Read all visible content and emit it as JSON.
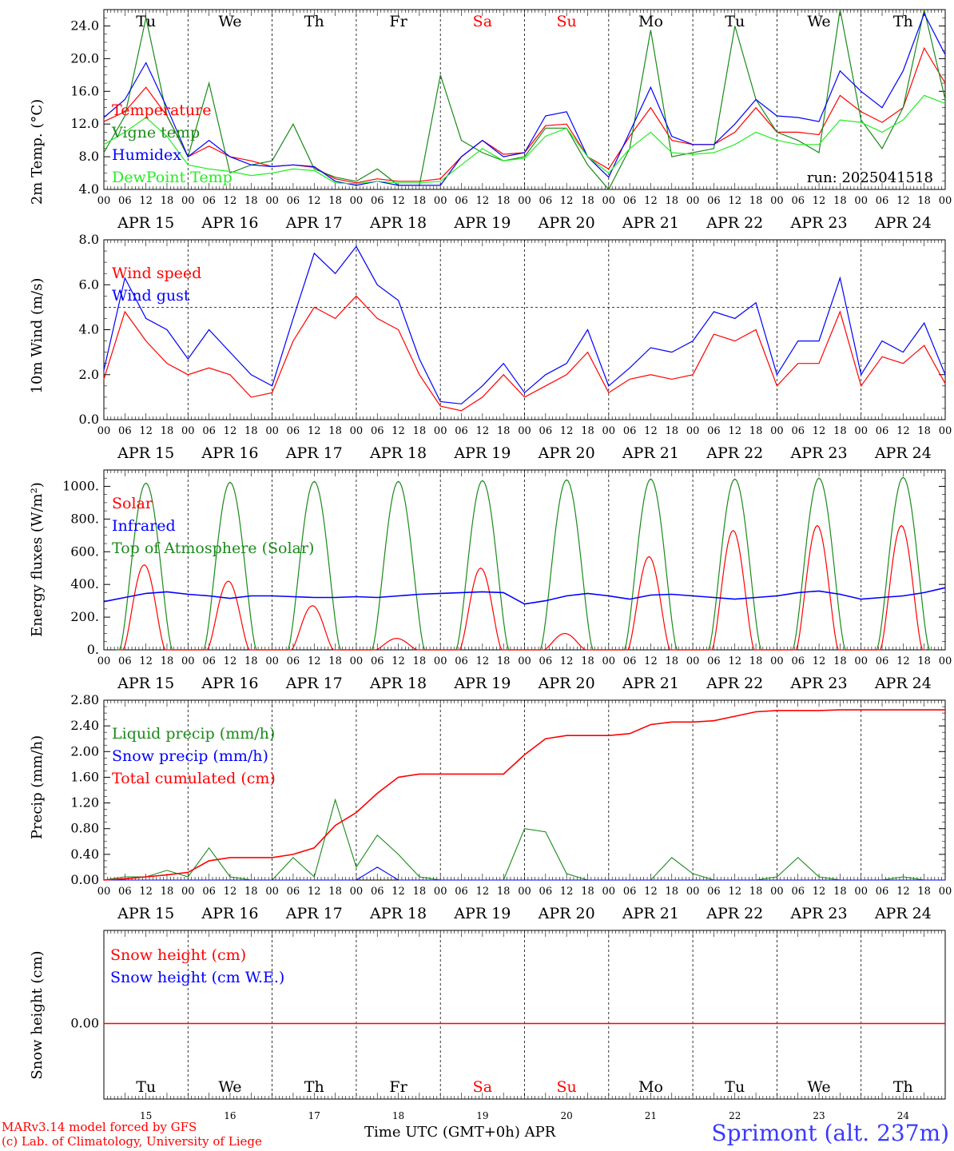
{
  "chart_data": [
    {
      "type": "line",
      "ylabel": "2m Temp. (°C)",
      "ylim": [
        4,
        26
      ],
      "yticks": [
        "4.0",
        "8.0",
        "12.0",
        "16.0",
        "20.0",
        "24.0"
      ],
      "ytick_values": [
        4,
        8,
        12,
        16,
        20,
        24
      ],
      "annotation": "run: 2025041518",
      "x_hours": [
        0,
        6,
        12,
        18,
        24,
        30,
        36,
        42,
        48,
        54,
        60,
        66,
        72,
        78,
        84,
        90,
        96,
        102,
        108,
        114,
        120,
        126,
        132,
        138,
        144,
        150,
        156,
        162,
        168,
        174,
        180,
        186,
        192,
        198,
        204,
        210,
        216,
        222,
        228,
        234,
        240
      ],
      "series": [
        {
          "name": "Temperature",
          "color": "#ff0000",
          "values": [
            12.3,
            13.5,
            16.5,
            13,
            8,
            9.3,
            8,
            7.5,
            6.8,
            7,
            6.7,
            5.3,
            4.8,
            5.3,
            5,
            5,
            5.3,
            8,
            10,
            8.3,
            8.5,
            11.8,
            12,
            8,
            6.5,
            10.5,
            14,
            10,
            9.5,
            9.5,
            11,
            14,
            11,
            11,
            10.7,
            15.5,
            13.5,
            12.2,
            14,
            21.3,
            17
          ]
        },
        {
          "name": "Vigne temp",
          "color": "#1a8a1a",
          "values": [
            8.5,
            13,
            25,
            13,
            8,
            17,
            6,
            7,
            7.5,
            12,
            6.5,
            5.5,
            5,
            6.5,
            4.5,
            4.5,
            18,
            10,
            8.5,
            7.5,
            8,
            11.5,
            11.5,
            7,
            4,
            9,
            23.5,
            8,
            8.5,
            9,
            24,
            15,
            11,
            10,
            8.5,
            26,
            12.5,
            9,
            14,
            26,
            15
          ]
        },
        {
          "name": "Humidex",
          "color": "#0000ff",
          "values": [
            12.8,
            15,
            19.5,
            14,
            8,
            10,
            8,
            7,
            6.8,
            7,
            6.8,
            5,
            4.5,
            5,
            4.5,
            4.5,
            4.5,
            8,
            10,
            8,
            8.5,
            13,
            13.5,
            8,
            5.5,
            11,
            16.5,
            10.5,
            9.5,
            9.5,
            12,
            15,
            13,
            12.8,
            12.3,
            18.5,
            16,
            14,
            18.5,
            25.5,
            20.5
          ]
        },
        {
          "name": "DewPoint Temp",
          "color": "#22ee22",
          "values": [
            9.5,
            11,
            12.8,
            10.5,
            7,
            6.5,
            6.2,
            5.7,
            6,
            6.5,
            6.3,
            4.8,
            4.7,
            5,
            4.8,
            4.8,
            5,
            7,
            9,
            7.5,
            7.8,
            10.5,
            11.5,
            8,
            6,
            9,
            11,
            8.5,
            8.3,
            8.5,
            9.5,
            11,
            10,
            9.5,
            9.5,
            12.5,
            12.2,
            11,
            12.5,
            15.5,
            14.5
          ]
        }
      ]
    },
    {
      "type": "line",
      "ylabel": "10m Wind (m/s)",
      "ylim": [
        0,
        8
      ],
      "yticks": [
        "0.0",
        "2.0",
        "4.0",
        "6.0",
        "8.0"
      ],
      "ytick_values": [
        0,
        2,
        4,
        6,
        8
      ],
      "reference_line": 5,
      "x_hours": [
        0,
        6,
        12,
        18,
        24,
        30,
        36,
        42,
        48,
        54,
        60,
        66,
        72,
        78,
        84,
        90,
        96,
        102,
        108,
        114,
        120,
        126,
        132,
        138,
        144,
        150,
        156,
        162,
        168,
        174,
        180,
        186,
        192,
        198,
        204,
        210,
        216,
        222,
        228,
        234,
        240
      ],
      "series": [
        {
          "name": "Wind speed",
          "color": "#ff0000",
          "values": [
            1.8,
            4.8,
            3.5,
            2.5,
            2,
            2.3,
            2,
            1,
            1.2,
            3.5,
            5,
            4.5,
            5.5,
            4.5,
            4,
            2,
            0.6,
            0.4,
            1,
            2,
            1,
            1.5,
            2,
            3,
            1.2,
            1.8,
            2,
            1.8,
            2,
            3.8,
            3.5,
            4,
            1.5,
            2.5,
            2.5,
            4.8,
            1.5,
            2.8,
            2.5,
            3.3,
            1.6
          ]
        },
        {
          "name": "Wind gust",
          "color": "#0000ff",
          "values": [
            2.2,
            6.3,
            4.5,
            4,
            2.7,
            4,
            3,
            2,
            1.5,
            4.5,
            7.4,
            6.5,
            7.7,
            6,
            5.3,
            2.7,
            0.8,
            0.7,
            1.5,
            2.5,
            1.2,
            2,
            2.5,
            4,
            1.5,
            2.3,
            3.2,
            3,
            3.5,
            4.8,
            4.5,
            5.2,
            2,
            3.5,
            3.5,
            6.3,
            2,
            3.5,
            3,
            4.3,
            2
          ]
        }
      ]
    },
    {
      "type": "line",
      "ylabel": "Energy fluxes (W/m²)",
      "ylim": [
        0,
        1100
      ],
      "yticks": [
        "0.",
        "200.",
        "400.",
        "600.",
        "800.",
        "1000."
      ],
      "ytick_values": [
        0,
        200,
        400,
        600,
        800,
        1000
      ],
      "toa_peaks": [
        1020,
        1025,
        1030,
        1030,
        1035,
        1040,
        1045,
        1045,
        1050,
        1055
      ],
      "solar_peaks": [
        520,
        420,
        270,
        70,
        500,
        100,
        570,
        730,
        760,
        760
      ],
      "infrared_values": [
        295,
        320,
        345,
        355,
        340,
        330,
        315,
        330,
        330,
        325,
        320,
        320,
        325,
        320,
        330,
        340,
        345,
        350,
        355,
        350,
        280,
        300,
        330,
        345,
        330,
        310,
        335,
        340,
        330,
        320,
        310,
        320,
        330,
        350,
        360,
        340,
        310,
        320,
        330,
        350,
        380
      ],
      "series": [
        {
          "name": "Solar",
          "color": "#ff0000"
        },
        {
          "name": "Infrared",
          "color": "#0000ff"
        },
        {
          "name": "Top of Atmosphere (Solar)",
          "color": "#1a8a1a"
        }
      ]
    },
    {
      "type": "line",
      "ylabel": "Precip (mm/h)",
      "ylim": [
        0,
        2.8
      ],
      "yticks": [
        "0.00",
        "0.40",
        "0.80",
        "1.20",
        "1.60",
        "2.00",
        "2.40",
        "2.80"
      ],
      "ytick_values": [
        0,
        0.4,
        0.8,
        1.2,
        1.6,
        2.0,
        2.4,
        2.8
      ],
      "x_hours": [
        0,
        6,
        12,
        18,
        24,
        30,
        36,
        42,
        48,
        54,
        60,
        66,
        72,
        78,
        84,
        90,
        96,
        102,
        108,
        114,
        120,
        126,
        132,
        138,
        144,
        150,
        156,
        162,
        168,
        174,
        180,
        186,
        192,
        198,
        204,
        210,
        216,
        222,
        228,
        234,
        240
      ],
      "series": [
        {
          "name": "Liquid precip (mm/h)",
          "color": "#1a8a1a",
          "values": [
            0,
            0.05,
            0.05,
            0.15,
            0.05,
            0.5,
            0.05,
            0,
            0,
            0.35,
            0.05,
            1.25,
            0.2,
            0.7,
            0.4,
            0.05,
            0,
            0,
            0,
            0,
            0.8,
            0.75,
            0.1,
            0,
            0,
            0,
            0,
            0.35,
            0.1,
            0,
            0,
            0,
            0.05,
            0.35,
            0.05,
            0,
            0,
            0,
            0.05,
            0,
            0
          ]
        },
        {
          "name": "Snow precip (mm/h)",
          "color": "#0000ff",
          "values": [
            0,
            0,
            0,
            0,
            0,
            0,
            0,
            0,
            0,
            0,
            0,
            0,
            0,
            0.2,
            0,
            0,
            0,
            0,
            0,
            0,
            0,
            0,
            0,
            0,
            0,
            0,
            0,
            0,
            0,
            0,
            0,
            0,
            0,
            0,
            0,
            0,
            0,
            0,
            0,
            0,
            0
          ]
        },
        {
          "name": "Total cumulated (cm)",
          "color": "#ff0000",
          "values": [
            0,
            0.02,
            0.05,
            0.08,
            0.12,
            0.3,
            0.35,
            0.35,
            0.35,
            0.4,
            0.5,
            0.85,
            1.05,
            1.35,
            1.6,
            1.65,
            1.65,
            1.65,
            1.65,
            1.65,
            1.95,
            2.2,
            2.25,
            2.25,
            2.25,
            2.28,
            2.42,
            2.46,
            2.46,
            2.48,
            2.55,
            2.62,
            2.64,
            2.64,
            2.64,
            2.65,
            2.65,
            2.65,
            2.65,
            2.65,
            2.65
          ]
        }
      ]
    },
    {
      "type": "line",
      "ylabel": "Snow height (cm)",
      "yticks": [
        "0.00"
      ],
      "ytick_values": [
        0
      ],
      "series": [
        {
          "name": "Snow height (cm)",
          "color": "#ff0000",
          "values": [
            0,
            0
          ]
        },
        {
          "name": "Snow height (cm W.E.)",
          "color": "#0000ff"
        }
      ]
    }
  ],
  "days": {
    "weekdays": [
      "Tu",
      "We",
      "Th",
      "Fr",
      "Sa",
      "Su",
      "Mo",
      "Tu",
      "We",
      "Th"
    ],
    "weekday_colors": [
      "#000000",
      "#000000",
      "#000000",
      "#000000",
      "#ff0000",
      "#ff0000",
      "#000000",
      "#000000",
      "#000000",
      "#000000"
    ],
    "dates": [
      "APR 15",
      "APR 16",
      "APR 17",
      "APR 18",
      "APR 19",
      "APR 20",
      "APR 21",
      "APR 22",
      "APR 23",
      "APR 24"
    ],
    "day_numbers": [
      "15",
      "16",
      "17",
      "18",
      "19",
      "20",
      "21",
      "22",
      "23",
      "24"
    ],
    "hour_labels": [
      "00",
      "06",
      "12",
      "18"
    ]
  },
  "footer": {
    "model_line": "MARv3.14 model forced by GFS",
    "credit_line": "(c) Lab. of Climatology, University of Liege",
    "time_axis_label": "Time UTC (GMT+0h) APR",
    "station": "Sprimont (alt. 237m)"
  }
}
